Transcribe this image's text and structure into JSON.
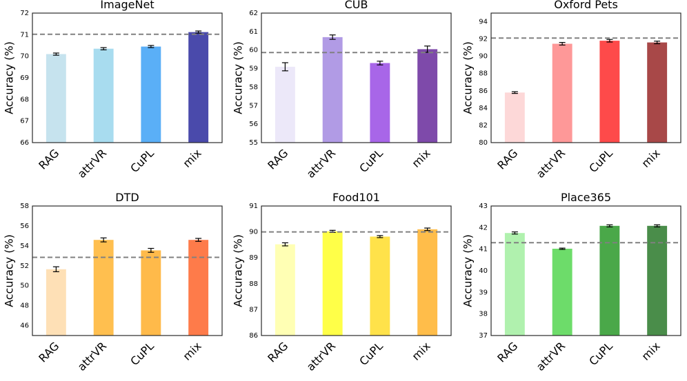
{
  "chart_data": [
    {
      "type": "bar",
      "title": "ImageNet",
      "ylabel": "Accuracy (%)",
      "xlabel": "",
      "categories": [
        "RAG",
        "attrVR",
        "CuPL",
        "mix"
      ],
      "values": [
        70.1,
        70.35,
        70.45,
        71.12
      ],
      "errors": [
        0.05,
        0.05,
        0.05,
        0.05
      ],
      "ylim": [
        66,
        72
      ],
      "yticks": [
        66,
        67,
        68,
        69,
        70,
        71,
        72
      ],
      "baseline": 71.02,
      "colors": [
        "#c6e3ee",
        "#a8dcef",
        "#5aaff7",
        "#4a4aab"
      ]
    },
    {
      "type": "bar",
      "title": "CUB",
      "ylabel": "Accuracy (%)",
      "xlabel": "",
      "categories": [
        "RAG",
        "attrVR",
        "CuPL",
        "mix"
      ],
      "values": [
        59.1,
        60.7,
        59.3,
        60.05
      ],
      "errors": [
        0.22,
        0.12,
        0.1,
        0.17
      ],
      "ylim": [
        55,
        62
      ],
      "yticks": [
        55,
        56,
        57,
        58,
        59,
        60,
        61,
        62
      ],
      "baseline": 59.87,
      "colors": [
        "#ece8f9",
        "#b19be5",
        "#a866e8",
        "#7e4aaa"
      ]
    },
    {
      "type": "bar",
      "title": "Oxford Pets",
      "ylabel": "Accuracy (%)",
      "xlabel": "",
      "categories": [
        "RAG",
        "attrVR",
        "CuPL",
        "mix"
      ],
      "values": [
        85.8,
        91.45,
        91.8,
        91.6
      ],
      "errors": [
        0.1,
        0.15,
        0.15,
        0.15
      ],
      "ylim": [
        80,
        95
      ],
      "yticks": [
        80,
        82,
        84,
        86,
        88,
        90,
        92,
        94
      ],
      "baseline": 92.1,
      "colors": [
        "#fdd8d8",
        "#fe9898",
        "#fe4a4a",
        "#a84848"
      ]
    },
    {
      "type": "bar",
      "title": "DTD",
      "ylabel": "Accuracy (%)",
      "xlabel": "",
      "categories": [
        "RAG",
        "attrVR",
        "CuPL",
        "mix"
      ],
      "values": [
        51.65,
        54.6,
        53.55,
        54.6
      ],
      "errors": [
        0.25,
        0.2,
        0.2,
        0.15
      ],
      "ylim": [
        45,
        58
      ],
      "yticks": [
        46,
        48,
        50,
        52,
        54,
        56,
        58
      ],
      "baseline": 52.85,
      "colors": [
        "#fee0b6",
        "#ffbf4f",
        "#ffba4a",
        "#fe7b4a"
      ]
    },
    {
      "type": "bar",
      "title": "Food101",
      "ylabel": "Accuracy (%)",
      "xlabel": "",
      "categories": [
        "RAG",
        "attrVR",
        "CuPL",
        "mix"
      ],
      "values": [
        89.52,
        90.02,
        89.82,
        90.1
      ],
      "errors": [
        0.06,
        0.04,
        0.04,
        0.05
      ],
      "ylim": [
        86,
        91
      ],
      "yticks": [
        86,
        87,
        88,
        89,
        90,
        91
      ],
      "baseline": 90.0,
      "colors": [
        "#ffffb4",
        "#ffff48",
        "#ffe24a",
        "#ffbd4a"
      ]
    },
    {
      "type": "bar",
      "title": "Place365",
      "ylabel": "Accuracy (%)",
      "xlabel": "",
      "categories": [
        "RAG",
        "attrVR",
        "CuPL",
        "mix"
      ],
      "values": [
        41.75,
        41.02,
        42.08,
        42.08
      ],
      "errors": [
        0.05,
        0.03,
        0.05,
        0.05
      ],
      "ylim": [
        37,
        43
      ],
      "yticks": [
        37,
        38,
        39,
        40,
        41,
        42,
        43
      ],
      "baseline": 41.3,
      "colors": [
        "#b0f1ae",
        "#6ddc6a",
        "#4aa849",
        "#4a8d4a"
      ]
    }
  ]
}
